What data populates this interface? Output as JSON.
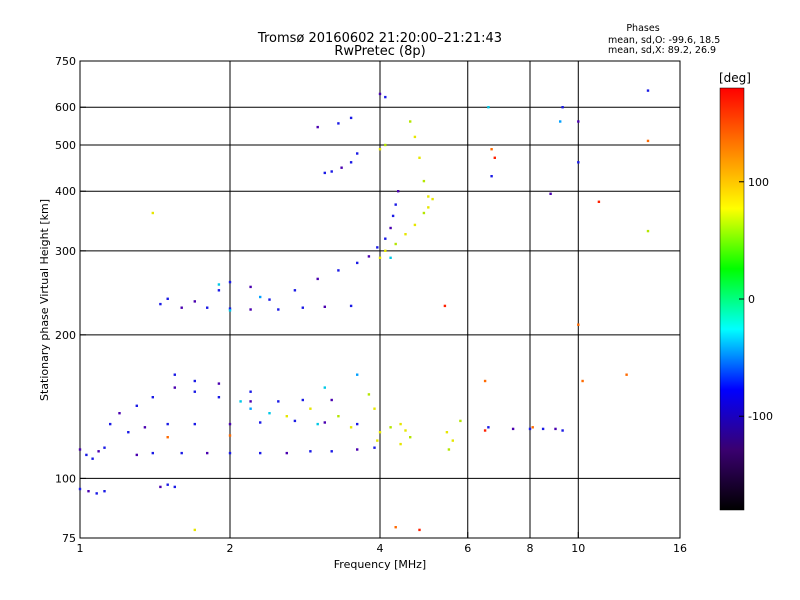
{
  "chart_data": {
    "type": "scatter",
    "title": "Tromsø 20160602 21:20:00–21:21:43",
    "subtitle": "RwPretec (8p)",
    "xlabel": "Frequency [MHz]",
    "ylabel": "Stationary phase Virtual Height [km]",
    "x_scale": "log",
    "y_scale": "log",
    "xlim": [
      1,
      16
    ],
    "ylim": [
      75,
      750
    ],
    "x_ticks": [
      {
        "value": 1,
        "label": "1"
      },
      {
        "value": 2,
        "label": "2"
      },
      {
        "value": 4,
        "label": "4"
      },
      {
        "value": 6,
        "label": "6"
      },
      {
        "value": 8,
        "label": "8"
      },
      {
        "value": 10,
        "label": "10"
      },
      {
        "value": 16,
        "label": "16"
      }
    ],
    "x_gridlines": [
      2,
      4,
      6,
      8,
      10
    ],
    "y_ticks": [
      {
        "value": 75,
        "label": "75"
      },
      {
        "value": 100,
        "label": "100"
      },
      {
        "value": 200,
        "label": "200"
      },
      {
        "value": 300,
        "label": "300"
      },
      {
        "value": 400,
        "label": "400"
      },
      {
        "value": 500,
        "label": "500"
      },
      {
        "value": 600,
        "label": "600"
      },
      {
        "value": 750,
        "label": "750"
      }
    ],
    "y_gridlines": [
      100,
      200,
      300,
      400,
      500,
      600
    ],
    "grid": true,
    "stats": {
      "heading": "Phases",
      "line_o": "mean, sd,O: -99.6, 18.5",
      "line_x": "mean, sd,X:  89.2, 26.9"
    },
    "colorbar": {
      "label": "[deg]",
      "min": -180,
      "max": 180,
      "ticks": [
        {
          "value": 100,
          "label": "100"
        },
        {
          "value": 0,
          "label": "0"
        },
        {
          "value": -100,
          "label": "-100"
        }
      ],
      "colors": [
        "#000000",
        "#3a0070",
        "#0000ff",
        "#00ffff",
        "#00ff00",
        "#ffff00",
        "#ff8000",
        "#ff0000"
      ]
    },
    "series": [
      {
        "points": [
          [
            1.0,
            115
          ],
          [
            1.03,
            112
          ],
          [
            1.06,
            110
          ],
          [
            1.09,
            114
          ],
          [
            1.12,
            116
          ],
          [
            1.0,
            95
          ],
          [
            1.04,
            94
          ],
          [
            1.08,
            93
          ],
          [
            1.12,
            94
          ],
          [
            1.45,
            96
          ],
          [
            1.5,
            97
          ],
          [
            1.55,
            96
          ],
          [
            1.3,
            112
          ],
          [
            1.4,
            113
          ],
          [
            1.6,
            113
          ],
          [
            1.8,
            113
          ],
          [
            2.0,
            113
          ],
          [
            2.3,
            113
          ],
          [
            2.6,
            113
          ],
          [
            2.9,
            114
          ],
          [
            3.2,
            114
          ],
          [
            3.6,
            115
          ],
          [
            3.9,
            116
          ],
          [
            1.25,
            125
          ],
          [
            1.35,
            128
          ],
          [
            1.5,
            130
          ],
          [
            1.7,
            130
          ],
          [
            2.0,
            130
          ],
          [
            2.3,
            131
          ],
          [
            2.7,
            132
          ],
          [
            3.1,
            131
          ],
          [
            3.6,
            130
          ],
          [
            1.15,
            130
          ],
          [
            1.2,
            137
          ],
          [
            1.3,
            142
          ],
          [
            1.4,
            148
          ],
          [
            1.55,
            155
          ],
          [
            1.7,
            152
          ],
          [
            1.9,
            148
          ],
          [
            2.2,
            145
          ],
          [
            2.5,
            145
          ],
          [
            2.8,
            146
          ],
          [
            3.2,
            146
          ],
          [
            1.55,
            165
          ],
          [
            1.7,
            160
          ],
          [
            1.9,
            158
          ],
          [
            2.2,
            152
          ],
          [
            1.45,
            232
          ],
          [
            1.6,
            228
          ],
          [
            1.8,
            228
          ],
          [
            2.0,
            227
          ],
          [
            2.2,
            226
          ],
          [
            2.5,
            226
          ],
          [
            2.8,
            228
          ],
          [
            3.1,
            229
          ],
          [
            3.5,
            230
          ],
          [
            1.5,
            238
          ],
          [
            1.7,
            235
          ],
          [
            1.9,
            248
          ],
          [
            2.0,
            258
          ],
          [
            2.2,
            252
          ],
          [
            2.4,
            237
          ],
          [
            2.7,
            248
          ],
          [
            3.0,
            262
          ],
          [
            3.3,
            273
          ],
          [
            3.6,
            283
          ],
          [
            3.8,
            292
          ],
          [
            3.95,
            305
          ],
          [
            4.1,
            318
          ],
          [
            4.2,
            335
          ],
          [
            4.25,
            355
          ],
          [
            4.3,
            375
          ],
          [
            4.35,
            400
          ],
          [
            3.1,
            437
          ],
          [
            3.2,
            440
          ],
          [
            3.35,
            448
          ],
          [
            3.5,
            460
          ],
          [
            3.6,
            480
          ],
          [
            3.0,
            545
          ],
          [
            3.3,
            555
          ],
          [
            3.5,
            570
          ],
          [
            4.0,
            640
          ],
          [
            4.1,
            630
          ],
          [
            6.6,
            128
          ],
          [
            7.4,
            127
          ],
          [
            8.0,
            127
          ],
          [
            8.5,
            127
          ],
          [
            9.0,
            127
          ],
          [
            9.3,
            126
          ],
          [
            9.3,
            600
          ],
          [
            10.0,
            560
          ],
          [
            10.0,
            460
          ],
          [
            6.7,
            430
          ],
          [
            8.8,
            395
          ],
          [
            13.8,
            650
          ]
        ]
      },
      {
        "points": [
          [
            3.8,
            150
          ],
          [
            3.9,
            140
          ],
          [
            4.0,
            125
          ],
          [
            4.2,
            128
          ],
          [
            4.4,
            130
          ],
          [
            4.5,
            126
          ],
          [
            4.6,
            122
          ],
          [
            4.4,
            118
          ],
          [
            3.95,
            120
          ],
          [
            5.5,
            115
          ],
          [
            5.6,
            120
          ],
          [
            5.45,
            125
          ],
          [
            5.8,
            132
          ],
          [
            4.0,
            290
          ],
          [
            4.1,
            300
          ],
          [
            4.3,
            310
          ],
          [
            4.5,
            325
          ],
          [
            4.7,
            340
          ],
          [
            4.9,
            360
          ],
          [
            5.0,
            370
          ],
          [
            5.1,
            385
          ],
          [
            4.6,
            560
          ],
          [
            4.7,
            520
          ],
          [
            4.8,
            470
          ],
          [
            4.9,
            420
          ],
          [
            5.0,
            390
          ],
          [
            4.0,
            490
          ],
          [
            4.1,
            500
          ],
          [
            1.4,
            360
          ],
          [
            1.7,
            78
          ],
          [
            13.8,
            330
          ],
          [
            2.6,
            135
          ],
          [
            2.9,
            140
          ],
          [
            3.3,
            135
          ],
          [
            3.5,
            128
          ]
        ]
      },
      {
        "points": [
          [
            2.2,
            140
          ],
          [
            2.4,
            137
          ],
          [
            3.1,
            155
          ],
          [
            3.6,
            165
          ],
          [
            2.1,
            145
          ],
          [
            2.0,
            225
          ],
          [
            2.3,
            240
          ],
          [
            1.9,
            255
          ],
          [
            6.6,
            600
          ],
          [
            9.2,
            560
          ],
          [
            4.2,
            290
          ],
          [
            3.0,
            130
          ]
        ]
      },
      {
        "points": [
          [
            6.8,
            470
          ],
          [
            6.7,
            490
          ],
          [
            6.5,
            160
          ],
          [
            11.0,
            380
          ],
          [
            12.5,
            165
          ],
          [
            10.2,
            160
          ],
          [
            5.4,
            230
          ],
          [
            13.8,
            510
          ],
          [
            4.3,
            79
          ],
          [
            4.8,
            78
          ],
          [
            1.5,
            122
          ],
          [
            2.0,
            123
          ],
          [
            6.5,
            126
          ],
          [
            8.1,
            128
          ],
          [
            10.0,
            210
          ]
        ]
      }
    ]
  }
}
